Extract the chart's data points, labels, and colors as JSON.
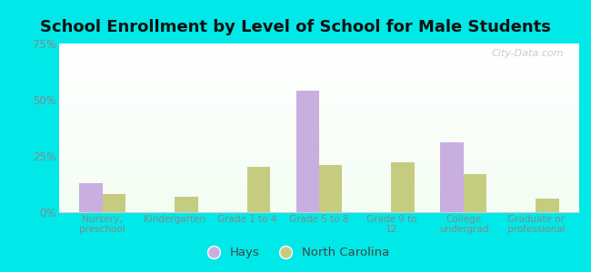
{
  "title": "School Enrollment by Level of School for Male Students",
  "categories": [
    "Nursery,\npreschool",
    "Kindergarten",
    "Grade 1 to 4",
    "Grade 5 to 8",
    "Grade 9 to\n12",
    "College\nundergrad",
    "Graduate or\nprofessional"
  ],
  "hays_values": [
    13,
    0,
    0,
    54,
    0,
    31,
    0
  ],
  "nc_values": [
    8,
    7,
    20,
    21,
    22,
    17,
    6
  ],
  "hays_color": "#c9aee0",
  "nc_color": "#c5cc80",
  "ylim": [
    0,
    75
  ],
  "yticks": [
    0,
    25,
    50,
    75
  ],
  "ytick_labels": [
    "0%",
    "25%",
    "50%",
    "75%"
  ],
  "background_color": "#00e8e8",
  "title_fontsize": 13,
  "title_color": "#111111",
  "legend_labels": [
    "Hays",
    "North Carolina"
  ],
  "bar_width": 0.32,
  "tick_color": "#888888",
  "watermark": "City-Data.com"
}
